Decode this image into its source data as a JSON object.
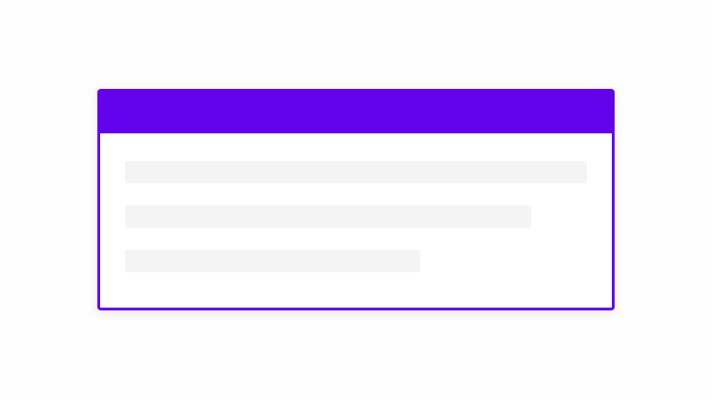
{
  "colors": {
    "accent": "#6200ea",
    "skeleton": "#f3f4f6",
    "background": "#fdfdfd"
  },
  "skeleton_lines": [
    {
      "fill_percent": 100
    },
    {
      "fill_percent": 88
    },
    {
      "fill_percent": 64
    }
  ]
}
